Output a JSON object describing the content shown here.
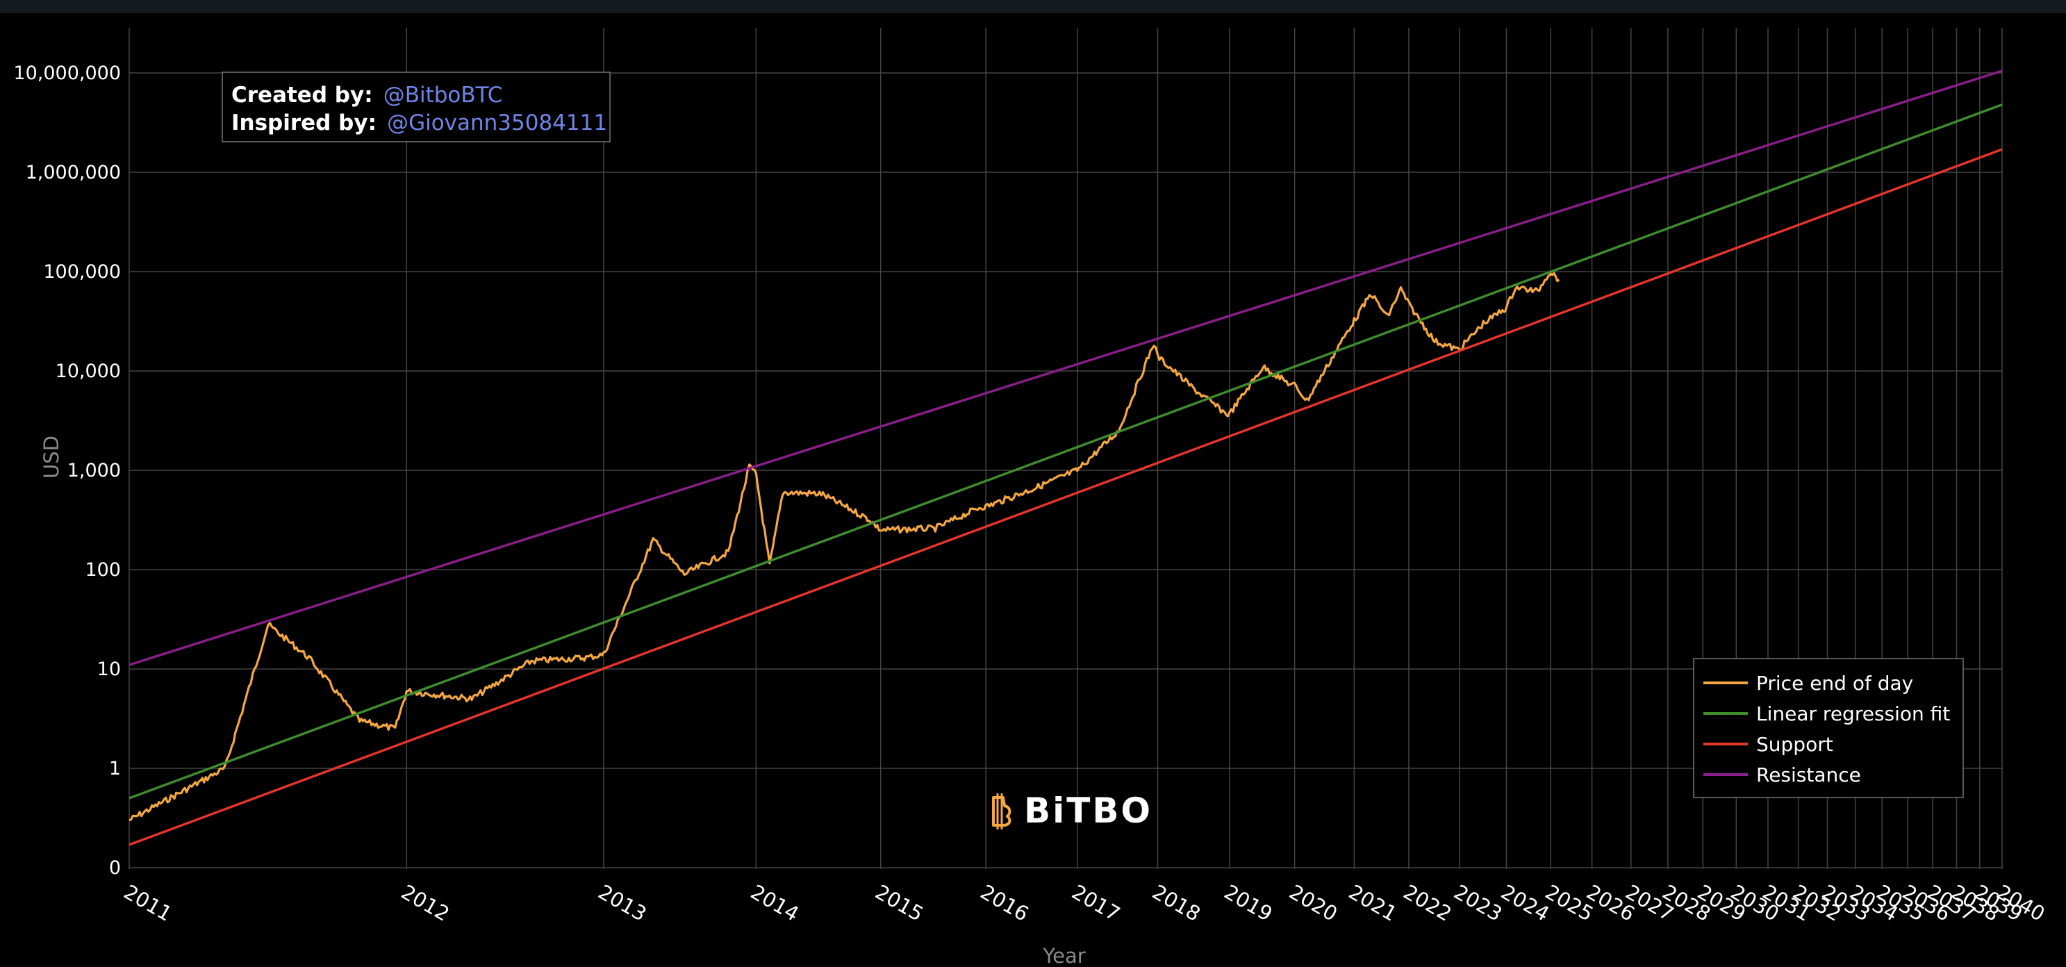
{
  "chart_data": {
    "type": "line",
    "title": "",
    "xlabel": "Year",
    "ylabel": "USD",
    "y_scale": "log",
    "y_ticks": [
      "10,000,000",
      "1,000,000",
      "100,000",
      "10,000",
      "1,000",
      "100",
      "10",
      "1",
      "0"
    ],
    "x_ticks": [
      "2011",
      "2012",
      "2013",
      "2014",
      "2015",
      "2016",
      "2017",
      "2018",
      "2019",
      "2020",
      "2021",
      "2022",
      "2023",
      "2024",
      "2025",
      "2026",
      "2027",
      "2028",
      "2029",
      "2030",
      "2031",
      "2032",
      "2033",
      "2034",
      "2035",
      "2036",
      "2037",
      "2038",
      "2039",
      "2040"
    ],
    "x_axis": "log-scaled years (days since genesis)",
    "grid": true,
    "legend_position": "bottom-right",
    "series": [
      {
        "name": "Price end of day",
        "color": "#f5a742",
        "points": [
          [
            "2011",
            0.3
          ],
          [
            "2011.3",
            1.0
          ],
          [
            "2011.45",
            28
          ],
          [
            "2011.6",
            13
          ],
          [
            "2011.8",
            3
          ],
          [
            "2011.95",
            2.5
          ],
          [
            "2012",
            6
          ],
          [
            "2012.3",
            5
          ],
          [
            "2012.6",
            12
          ],
          [
            "2012.9",
            13
          ],
          [
            "2013",
            14
          ],
          [
            "2013.3",
            200
          ],
          [
            "2013.5",
            90
          ],
          [
            "2013.8",
            150
          ],
          [
            "2013.95",
            1100
          ],
          [
            "2014",
            900
          ],
          [
            "2014.1",
            110
          ],
          [
            "2014.2",
            600
          ],
          [
            "2014.5",
            580
          ],
          [
            "2014.9",
            320
          ],
          [
            "2015",
            250
          ],
          [
            "2015.5",
            260
          ],
          [
            "2015.95",
            430
          ],
          [
            "2016",
            430
          ],
          [
            "2016.5",
            650
          ],
          [
            "2016.95",
            960
          ],
          [
            "2017",
            1000
          ],
          [
            "2017.5",
            2500
          ],
          [
            "2017.95",
            19000
          ],
          [
            "2018",
            14000
          ],
          [
            "2018.5",
            6500
          ],
          [
            "2018.95",
            3700
          ],
          [
            "2019",
            3700
          ],
          [
            "2019.5",
            11000
          ],
          [
            "2019.95",
            7200
          ],
          [
            "2020",
            7200
          ],
          [
            "2020.2",
            5000
          ],
          [
            "2020.95",
            29000
          ],
          [
            "2021",
            32000
          ],
          [
            "2021.3",
            60000
          ],
          [
            "2021.6",
            35000
          ],
          [
            "2021.85",
            67000
          ],
          [
            "2022",
            47000
          ],
          [
            "2022.5",
            20000
          ],
          [
            "2022.95",
            16500
          ],
          [
            "2023",
            16600
          ],
          [
            "2023.5",
            30000
          ],
          [
            "2023.95",
            42000
          ],
          [
            "2024",
            43000
          ],
          [
            "2024.2",
            70000
          ],
          [
            "2024.7",
            63000
          ],
          [
            "2024.95",
            95000
          ],
          [
            "2025",
            100000
          ],
          [
            "2025.2",
            83000
          ]
        ]
      },
      {
        "name": "Linear regression fit",
        "color": "#3e8f2c",
        "points": [
          [
            "2011",
            0.5
          ],
          [
            "2040",
            4800000
          ]
        ]
      },
      {
        "name": "Support",
        "color": "#e8352b",
        "points": [
          [
            "2011",
            0.17
          ],
          [
            "2040",
            1700000
          ]
        ]
      },
      {
        "name": "Resistance",
        "color": "#8a1e8a",
        "points": [
          [
            "2011",
            11
          ],
          [
            "2040",
            10500000
          ]
        ]
      }
    ]
  },
  "credits": {
    "created_label": "Created by:",
    "created_value": "@BitboBTC",
    "inspired_label": "Inspired by:",
    "inspired_value": "@Giovann35084111"
  },
  "brand": {
    "name": "BiTBO",
    "icon": "bitcoin-b-icon",
    "color": "#f5a742"
  },
  "colors": {
    "background": "#000000",
    "frame": "#151a21",
    "grid": "#444444"
  }
}
